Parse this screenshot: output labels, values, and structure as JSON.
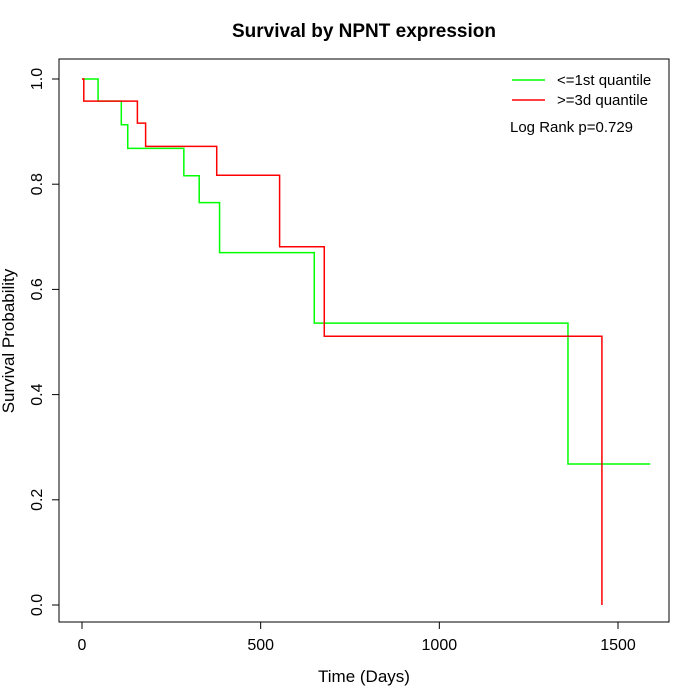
{
  "chart_data": {
    "type": "line",
    "subtype": "step",
    "title": "Survival by NPNT expression",
    "xlabel": "Time (Days)",
    "ylabel": "Survival Probability",
    "xlim": [
      0,
      1650
    ],
    "ylim": [
      0,
      1.0
    ],
    "xticks": [
      0,
      500,
      1000,
      1500
    ],
    "xtick_labels": [
      "0",
      "500",
      "1000",
      "1500"
    ],
    "yticks": [
      0.0,
      0.2,
      0.4,
      0.6,
      0.8,
      1.0
    ],
    "ytick_labels": [
      "0.0",
      "0.2",
      "0.4",
      "0.6",
      "0.8",
      "1.0"
    ],
    "legend_position": "top-right",
    "annotation": "Log Rank p=0.729",
    "series": [
      {
        "name": "<=1st quantile",
        "color": "#00ff00",
        "x": [
          0,
          45,
          110,
          128,
          285,
          328,
          385,
          650,
          1360,
          1590
        ],
        "y": [
          1.0,
          0.958,
          0.913,
          0.868,
          0.816,
          0.765,
          0.67,
          0.536,
          0.268,
          0.268
        ]
      },
      {
        "name": ">=3d quantile",
        "color": "#ff0000",
        "x": [
          0,
          5,
          155,
          178,
          377,
          553,
          678,
          1455,
          1455
        ],
        "y": [
          1.0,
          0.958,
          0.916,
          0.872,
          0.817,
          0.681,
          0.511,
          0.511,
          0.0
        ]
      }
    ]
  }
}
